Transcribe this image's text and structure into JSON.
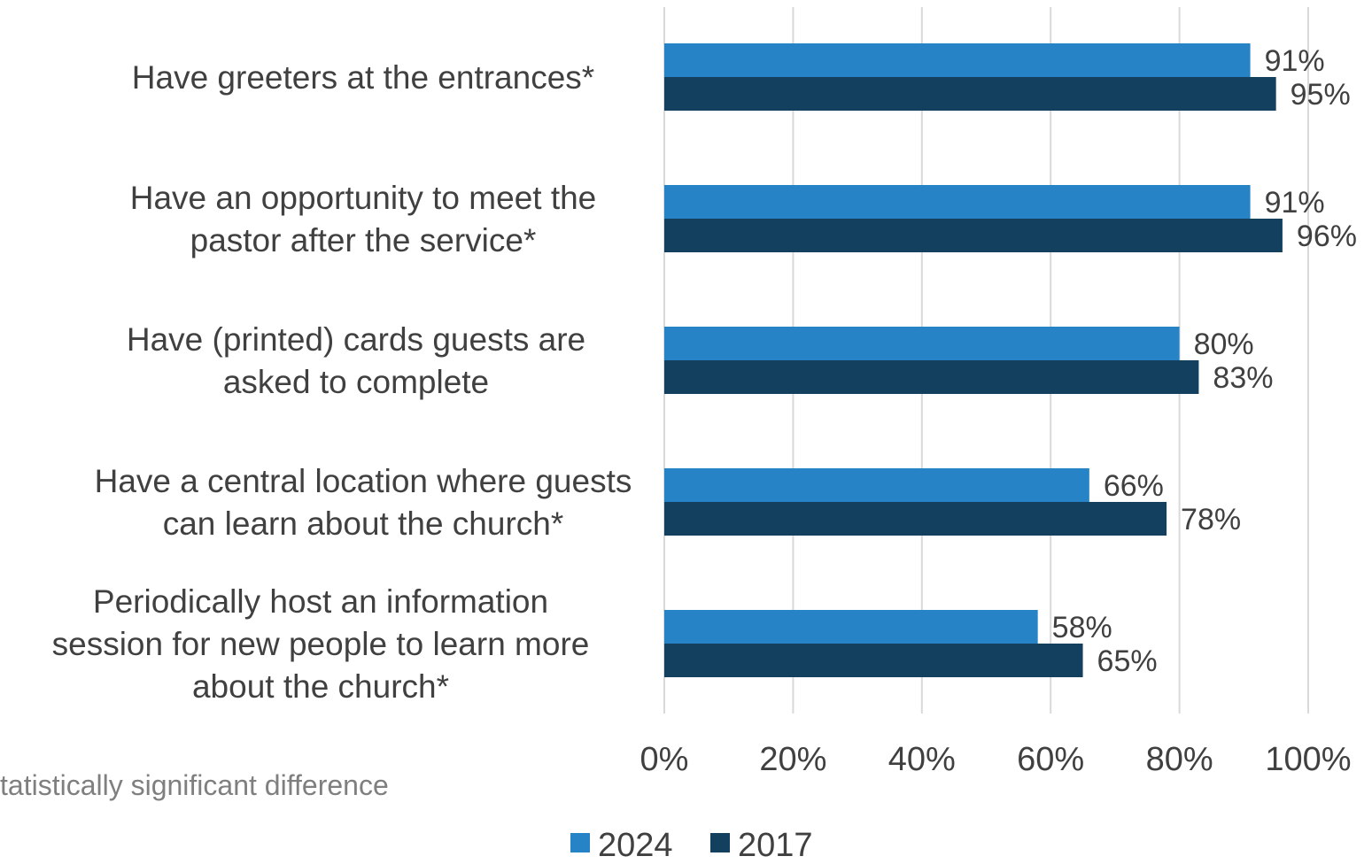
{
  "chart_data": {
    "type": "bar",
    "orientation": "horizontal",
    "categories": [
      [
        "Have greeters at the entrances*"
      ],
      [
        "Have an opportunity to meet the",
        "pastor after the service*"
      ],
      [
        "Have (printed) cards guests are",
        "asked to complete"
      ],
      [
        "Have a central location where guests",
        "can learn about the church*"
      ],
      [
        "Periodically host an information",
        "session for new people to learn more",
        "about the church*"
      ]
    ],
    "series": [
      {
        "name": "2024",
        "color": "#2683c6",
        "values": [
          91,
          91,
          80,
          66,
          58
        ],
        "labels": [
          "91%",
          "91%",
          "80%",
          "66%",
          "58%"
        ]
      },
      {
        "name": "2017",
        "color": "#14405f",
        "values": [
          95,
          96,
          83,
          78,
          65
        ],
        "labels": [
          "95%",
          "96%",
          "83%",
          "78%",
          "65%"
        ]
      }
    ],
    "xlim": [
      0,
      100
    ],
    "xticks": [
      0,
      20,
      40,
      60,
      80,
      100
    ],
    "xtick_labels": [
      "0%",
      "20%",
      "40%",
      "60%",
      "80%",
      "100%"
    ],
    "grid": "vertical",
    "legend_position": "bottom",
    "footnote": "tatistically significant difference"
  }
}
